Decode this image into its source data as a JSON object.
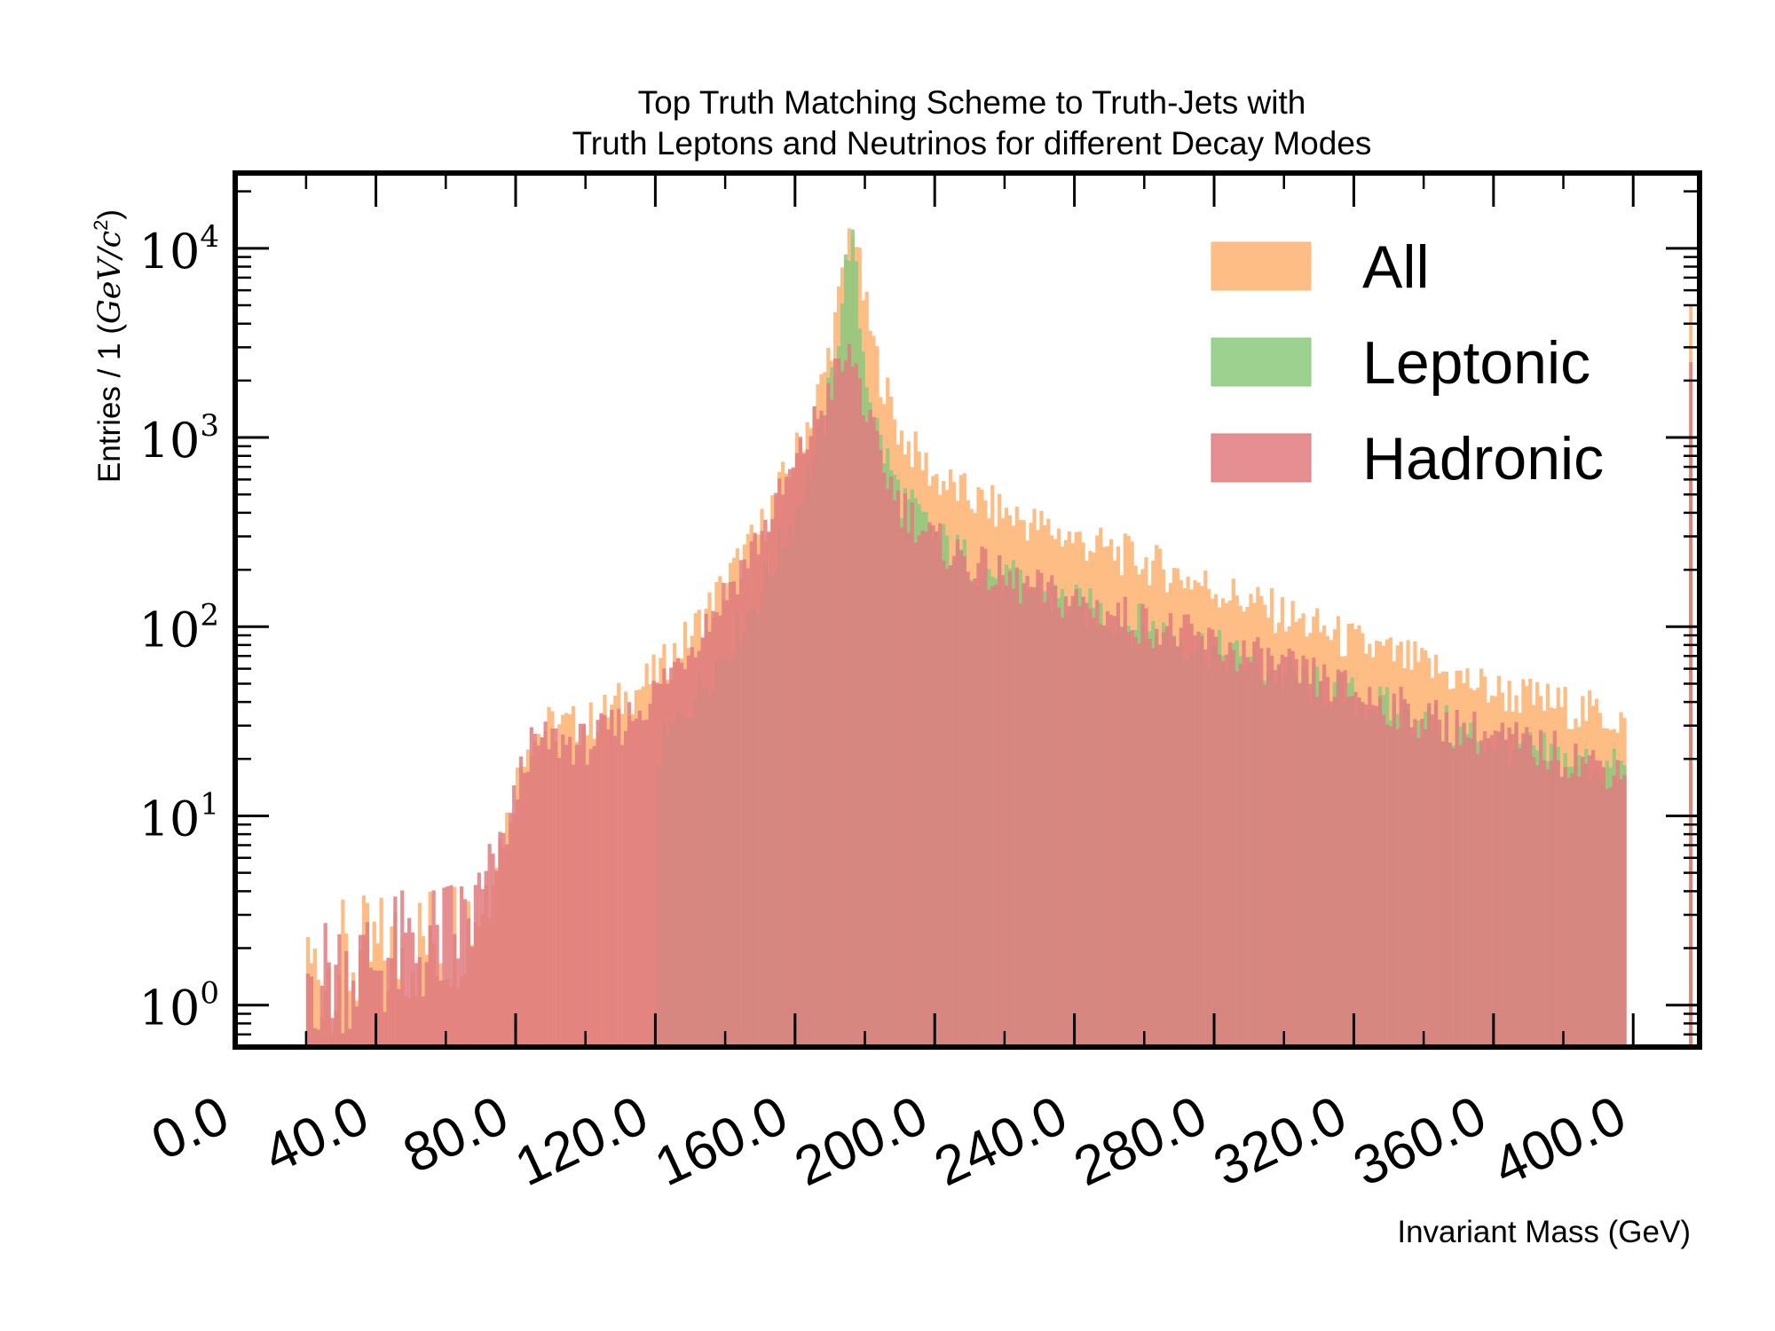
{
  "chart_data": {
    "type": "histogram",
    "title_lines": [
      "Top Truth Matching Scheme to Truth-Jets with",
      "Truth Leptons and Neutrinos for different Decay Modes"
    ],
    "xlabel": "Invariant Mass (GeV)",
    "ylabel_prefix": "Entries / 1 (",
    "ylabel_unit": "GeV/c",
    "ylabel_exp": "2",
    "ylabel_suffix": ")",
    "xlim": [
      -0.3,
      419
    ],
    "ylim": [
      0.6,
      25000
    ],
    "y_scale": "log",
    "bin_width": 1,
    "x_ticks": [
      0,
      40,
      80,
      120,
      160,
      200,
      240,
      280,
      320,
      360,
      400
    ],
    "x_tick_labels": [
      "0.0",
      "40.0",
      "80.0",
      "120.0",
      "160.0",
      "200.0",
      "240.0",
      "280.0",
      "320.0",
      "360.0",
      "400.0"
    ],
    "y_ticks": [
      {
        "value": 1,
        "base": "10",
        "exp": "0"
      },
      {
        "value": 10,
        "base": "10",
        "exp": "1"
      },
      {
        "value": 100,
        "base": "10",
        "exp": "2"
      },
      {
        "value": 1000,
        "base": "10",
        "exp": "3"
      },
      {
        "value": 10000,
        "base": "10",
        "exp": "4"
      }
    ],
    "legend_position": "top-right",
    "series": [
      {
        "name": "All",
        "color": "#fdb97d",
        "opacity": 0.95,
        "points": [
          [
            20,
            1.5
          ],
          [
            40,
            1.8
          ],
          [
            60,
            2.3
          ],
          [
            70,
            3.5
          ],
          [
            78,
            10
          ],
          [
            83,
            25
          ],
          [
            90,
            30
          ],
          [
            100,
            30
          ],
          [
            110,
            40
          ],
          [
            120,
            55
          ],
          [
            130,
            90
          ],
          [
            140,
            170
          ],
          [
            150,
            320
          ],
          [
            160,
            800
          ],
          [
            168,
            2000
          ],
          [
            172,
            4500
          ],
          [
            175,
            10000
          ],
          [
            176,
            14000
          ],
          [
            177,
            13000
          ],
          [
            178,
            9000
          ],
          [
            180,
            5000
          ],
          [
            184,
            2300
          ],
          [
            190,
            1050
          ],
          [
            200,
            620
          ],
          [
            210,
            480
          ],
          [
            220,
            400
          ],
          [
            240,
            290
          ],
          [
            260,
            220
          ],
          [
            280,
            160
          ],
          [
            300,
            115
          ],
          [
            320,
            82
          ],
          [
            340,
            62
          ],
          [
            360,
            46
          ],
          [
            380,
            38
          ],
          [
            398,
            32
          ]
        ],
        "edge_bin": {
          "x": 416,
          "value": 5000
        }
      },
      {
        "name": "Leptonic",
        "color": "#8cc97c",
        "opacity": 0.85,
        "points": [
          [
            120,
            20
          ],
          [
            130,
            40
          ],
          [
            140,
            75
          ],
          [
            150,
            150
          ],
          [
            160,
            400
          ],
          [
            168,
            1100
          ],
          [
            172,
            3000
          ],
          [
            175,
            9500
          ],
          [
            176,
            12000
          ],
          [
            177,
            9000
          ],
          [
            178,
            5000
          ],
          [
            180,
            2400
          ],
          [
            184,
            1000
          ],
          [
            190,
            500
          ],
          [
            200,
            300
          ],
          [
            210,
            220
          ],
          [
            220,
            180
          ],
          [
            230,
            150
          ],
          [
            240,
            130
          ],
          [
            260,
            100
          ],
          [
            280,
            75
          ],
          [
            300,
            55
          ],
          [
            320,
            42
          ],
          [
            340,
            32
          ],
          [
            360,
            25
          ],
          [
            380,
            20
          ],
          [
            398,
            17
          ]
        ],
        "edge_bin": {
          "x": 416,
          "value": 1000
        }
      },
      {
        "name": "Hadronic",
        "color": "#e07b7f",
        "opacity": 0.85,
        "points": [
          [
            20,
            1.4
          ],
          [
            40,
            1.7
          ],
          [
            60,
            2.2
          ],
          [
            70,
            3.2
          ],
          [
            78,
            9
          ],
          [
            83,
            22
          ],
          [
            90,
            25
          ],
          [
            100,
            24
          ],
          [
            110,
            30
          ],
          [
            120,
            45
          ],
          [
            130,
            80
          ],
          [
            140,
            150
          ],
          [
            150,
            300
          ],
          [
            160,
            700
          ],
          [
            168,
            1500
          ],
          [
            172,
            2200
          ],
          [
            175,
            2500
          ],
          [
            176,
            2700
          ],
          [
            177,
            2500
          ],
          [
            178,
            2200
          ],
          [
            180,
            1400
          ],
          [
            184,
            800
          ],
          [
            190,
            450
          ],
          [
            200,
            280
          ],
          [
            210,
            220
          ],
          [
            220,
            175
          ],
          [
            240,
            135
          ],
          [
            260,
            105
          ],
          [
            280,
            80
          ],
          [
            300,
            60
          ],
          [
            320,
            45
          ],
          [
            340,
            33
          ],
          [
            360,
            26
          ],
          [
            380,
            21
          ],
          [
            398,
            17
          ]
        ],
        "edge_bin": {
          "x": 416,
          "value": 2500
        }
      }
    ]
  }
}
